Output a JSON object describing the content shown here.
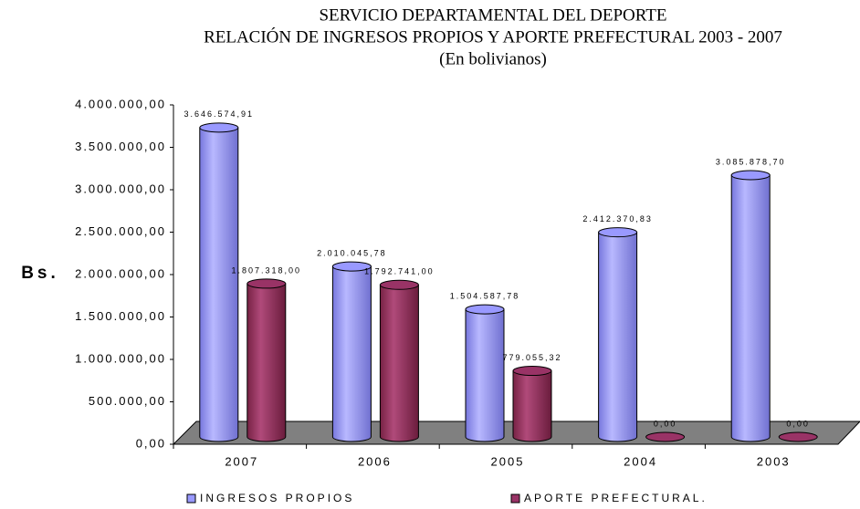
{
  "chart_data": {
    "type": "bar",
    "title": [
      "SERVICIO DEPARTAMENTAL DEL DEPORTE",
      "RELACIÓN DE INGRESOS PROPIOS Y APORTE PREFECTURAL 2003 - 2007",
      "(En bolivianos)"
    ],
    "y_label": "Bs.",
    "categories": [
      "2007",
      "2006",
      "2005",
      "2004",
      "2003"
    ],
    "series": [
      {
        "name": "INGRESOS PROPIOS",
        "color": "#9999ff",
        "values": [
          3646574.91,
          2010045.78,
          1504587.78,
          2412370.83,
          3085878.7
        ],
        "value_labels": [
          "3.646.574,91",
          "2.010.045,78",
          "1.504.587,78",
          "2.412.370,83",
          "3.085.878,70"
        ]
      },
      {
        "name": "APORTE PREFECTURAL.",
        "color": "#993366",
        "values": [
          1807318.0,
          1792741.0,
          779055.32,
          0,
          0
        ],
        "value_labels": [
          "1.807.318,00",
          "1.792.741,00",
          "779.055,32",
          "0,00",
          "0,00"
        ]
      }
    ],
    "ylim": [
      0,
      4000000
    ],
    "yticks": [
      {
        "value": 0,
        "label": "0,00"
      },
      {
        "value": 500000,
        "label": "500.000,00"
      },
      {
        "value": 1000000,
        "label": "1.000.000,00"
      },
      {
        "value": 1500000,
        "label": "1.500.000,00"
      },
      {
        "value": 2000000,
        "label": "2.000.000,00"
      },
      {
        "value": 2500000,
        "label": "2.500.000,00"
      },
      {
        "value": 3000000,
        "label": "3.000.000,00"
      },
      {
        "value": 3500000,
        "label": "3.500.000,00"
      },
      {
        "value": 4000000,
        "label": "4.000.000,00"
      }
    ],
    "legend": "bottom"
  }
}
